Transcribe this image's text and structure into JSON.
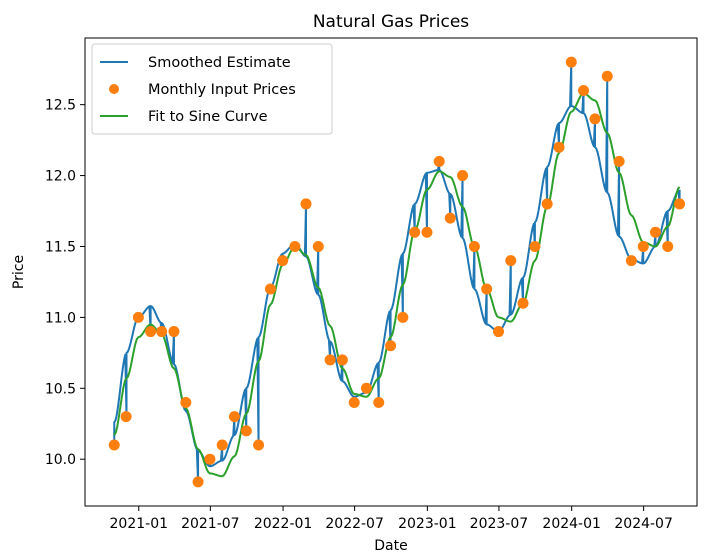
{
  "chart_data": {
    "type": "line",
    "title": "Natural Gas Prices",
    "xlabel": "Date",
    "ylabel": "Price",
    "xlim": [
      "2020-08-18",
      "2024-11-13"
    ],
    "ylim": [
      9.67,
      12.97
    ],
    "x_ticks": [
      "2021-01",
      "2021-07",
      "2022-01",
      "2022-07",
      "2023-01",
      "2023-07",
      "2024-01",
      "2024-07"
    ],
    "y_ticks": [
      "10.0",
      "10.5",
      "11.0",
      "11.5",
      "12.0",
      "12.5"
    ],
    "grid": false,
    "legend_position": "top-left",
    "colors": {
      "smoothed": "#1f77b4",
      "points": "#ff7f0e",
      "fit": "#2ca02c"
    },
    "series": [
      {
        "name": "Monthly Input Prices",
        "kind": "scatter",
        "x": [
          "2020-10-31",
          "2020-11-30",
          "2020-12-31",
          "2021-01-31",
          "2021-02-28",
          "2021-03-31",
          "2021-04-30",
          "2021-05-31",
          "2021-06-30",
          "2021-07-31",
          "2021-08-31",
          "2021-09-30",
          "2021-10-31",
          "2021-11-30",
          "2021-12-31",
          "2022-01-31",
          "2022-02-28",
          "2022-03-31",
          "2022-04-30",
          "2022-05-31",
          "2022-06-30",
          "2022-07-31",
          "2022-08-31",
          "2022-09-30",
          "2022-10-31",
          "2022-11-30",
          "2022-12-31",
          "2023-01-31",
          "2023-02-28",
          "2023-03-31",
          "2023-04-30",
          "2023-05-31",
          "2023-06-30",
          "2023-07-31",
          "2023-08-31",
          "2023-09-30",
          "2023-10-31",
          "2023-11-30",
          "2023-12-31",
          "2024-01-31",
          "2024-02-29",
          "2024-03-31",
          "2024-04-30",
          "2024-05-31",
          "2024-06-30",
          "2024-07-31",
          "2024-08-31",
          "2024-09-30"
        ],
        "y": [
          10.1,
          10.3,
          11.0,
          10.9,
          10.9,
          10.9,
          10.4,
          9.84,
          10.0,
          10.1,
          10.3,
          10.2,
          10.1,
          11.2,
          11.4,
          11.5,
          11.8,
          11.5,
          10.7,
          10.7,
          10.4,
          10.5,
          10.4,
          10.8,
          11.0,
          11.6,
          11.6,
          12.1,
          11.7,
          12.0,
          11.5,
          11.2,
          10.9,
          11.4,
          11.1,
          11.5,
          11.8,
          12.2,
          12.8,
          12.6,
          12.4,
          12.7,
          12.1,
          11.4,
          11.5,
          11.6,
          11.5,
          11.8
        ]
      },
      {
        "name": "Fit to Sine Curve",
        "kind": "line",
        "x": [
          "2020-10-31",
          "2020-12-01",
          "2020-12-31",
          "2021-01-31",
          "2021-02-28",
          "2021-03-31",
          "2021-04-30",
          "2021-05-31",
          "2021-06-30",
          "2021-07-31",
          "2021-08-31",
          "2021-09-30",
          "2021-10-31",
          "2021-11-30",
          "2021-12-31",
          "2022-01-31",
          "2022-02-28",
          "2022-03-31",
          "2022-04-30",
          "2022-05-31",
          "2022-06-30",
          "2022-07-31",
          "2022-08-31",
          "2022-09-30",
          "2022-10-31",
          "2022-11-30",
          "2022-12-31",
          "2023-01-31",
          "2023-02-28",
          "2023-03-31",
          "2023-04-30",
          "2023-05-31",
          "2023-06-30",
          "2023-07-31",
          "2023-08-31",
          "2023-09-30",
          "2023-10-31",
          "2023-11-30",
          "2023-12-31",
          "2024-01-31",
          "2024-02-29",
          "2024-03-31",
          "2024-04-30",
          "2024-05-31",
          "2024-06-30",
          "2024-07-31",
          "2024-08-31",
          "2024-09-30"
        ],
        "y": [
          10.17,
          10.57,
          10.86,
          10.95,
          10.88,
          10.64,
          10.36,
          10.07,
          9.9,
          9.88,
          10.02,
          10.32,
          10.69,
          11.09,
          11.37,
          11.5,
          11.44,
          11.21,
          10.94,
          10.64,
          10.46,
          10.44,
          10.57,
          10.86,
          11.23,
          11.61,
          11.9,
          12.03,
          11.99,
          11.78,
          11.5,
          11.2,
          11.0,
          10.97,
          11.1,
          11.4,
          11.78,
          12.16,
          12.45,
          12.58,
          12.53,
          12.3,
          12.02,
          11.72,
          11.53,
          11.5,
          11.64,
          11.92
        ]
      },
      {
        "name": "Smoothed Estimate",
        "kind": "line",
        "x": [
          "2020-10-31",
          "2020-12-01",
          "2020-12-31",
          "2021-01-31",
          "2021-02-28",
          "2021-03-31",
          "2021-04-30",
          "2021-05-31",
          "2021-06-30",
          "2021-07-31",
          "2021-08-31",
          "2021-09-30",
          "2021-10-31",
          "2021-11-30",
          "2021-12-31",
          "2022-01-31",
          "2022-02-28",
          "2022-03-31",
          "2022-04-30",
          "2022-05-31",
          "2022-06-30",
          "2022-07-31",
          "2022-08-31",
          "2022-09-30",
          "2022-10-31",
          "2022-11-30",
          "2022-12-31",
          "2023-01-31",
          "2023-02-28",
          "2023-03-31",
          "2023-04-30",
          "2023-05-31",
          "2023-06-30",
          "2023-07-31",
          "2023-08-31",
          "2023-09-30",
          "2023-10-31",
          "2023-11-30",
          "2023-12-31",
          "2024-01-31",
          "2024-02-29",
          "2024-03-31",
          "2024-04-30",
          "2024-05-31",
          "2024-06-30",
          "2024-07-31",
          "2024-08-31",
          "2024-09-30"
        ],
        "y": [
          10.26,
          10.75,
          11.0,
          11.08,
          10.96,
          10.67,
          10.34,
          10.06,
          9.95,
          9.99,
          10.17,
          10.5,
          10.86,
          11.21,
          11.45,
          11.52,
          11.43,
          11.16,
          10.83,
          10.55,
          10.44,
          10.47,
          10.68,
          11.05,
          11.45,
          11.8,
          12.02,
          12.04,
          11.87,
          11.56,
          11.2,
          10.95,
          10.9,
          11.02,
          11.28,
          11.67,
          12.06,
          12.37,
          12.49,
          12.44,
          12.2,
          11.88,
          11.57,
          11.41,
          11.38,
          11.5,
          11.75,
          11.9
        ]
      }
    ]
  }
}
